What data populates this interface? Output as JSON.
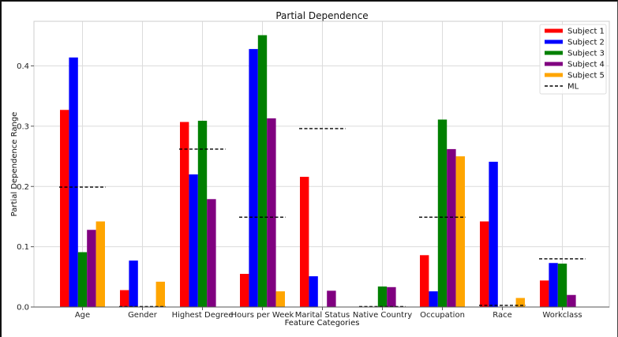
{
  "chart_data": {
    "type": "bar",
    "title": "Partial Dependence",
    "xlabel": "Feature Categories",
    "ylabel": "Partial Dependence Range",
    "ylim": [
      0,
      0.474
    ],
    "yticks": [
      0.0,
      0.1,
      0.2,
      0.3,
      0.4
    ],
    "ytick_labels": [
      "0.0",
      "0.1",
      "0.2",
      "0.3",
      "0.4"
    ],
    "grid": true,
    "legend_position": "top-right",
    "categories": [
      "Age",
      "Gender",
      "Highest Degree",
      "Hours per Week",
      "Marital Status",
      "Native Country",
      "Occupation",
      "Race",
      "Workclass"
    ],
    "series": [
      {
        "name": "Subject 1",
        "color": "#ff0000",
        "values": [
          0.327,
          0.028,
          0.307,
          0.055,
          0.216,
          0.0,
          0.086,
          0.142,
          0.044
        ]
      },
      {
        "name": "Subject 2",
        "color": "#0000ff",
        "values": [
          0.414,
          0.077,
          0.22,
          0.428,
          0.051,
          0.0,
          0.026,
          0.241,
          0.073
        ]
      },
      {
        "name": "Subject 3",
        "color": "#008000",
        "values": [
          0.091,
          0.0,
          0.309,
          0.451,
          0.0,
          0.034,
          0.311,
          0.0,
          0.072
        ]
      },
      {
        "name": "Subject 4",
        "color": "#800080",
        "values": [
          0.128,
          0.0,
          0.179,
          0.313,
          0.027,
          0.033,
          0.262,
          0.0,
          0.02
        ]
      },
      {
        "name": "Subject 5",
        "color": "#ffa500",
        "values": [
          0.142,
          0.042,
          0.0,
          0.026,
          0.0,
          0.0,
          0.25,
          0.015,
          0.0
        ]
      }
    ],
    "reference_line": {
      "name": "ML",
      "color": "#000000",
      "style": "dashed",
      "values": [
        0.199,
        0.0,
        0.262,
        0.149,
        0.296,
        0.0,
        0.149,
        0.002,
        0.08
      ]
    }
  }
}
